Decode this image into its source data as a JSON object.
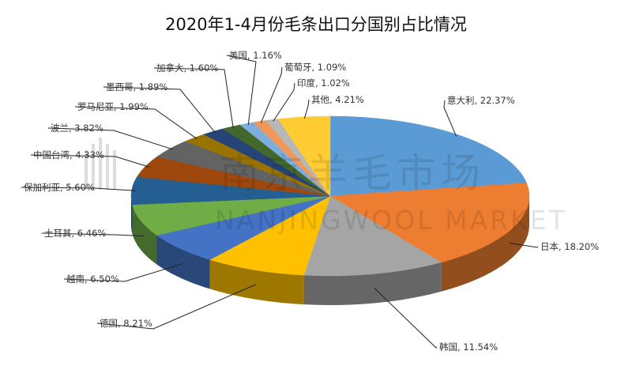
{
  "chart_data": {
    "type": "pie",
    "title": "2020年1-4月份毛条出口分国别占比情况",
    "categories": [
      "意大利",
      "日本",
      "韩国",
      "德国",
      "越南",
      "土耳其",
      "保加利亚",
      "中国台湾",
      "波兰",
      "罗马尼亚",
      "墨西哥",
      "加拿大",
      "美国",
      "葡萄牙",
      "印度",
      "其他"
    ],
    "values": [
      22.37,
      18.2,
      11.54,
      8.21,
      6.5,
      6.46,
      5.6,
      4.33,
      3.82,
      1.99,
      1.89,
      1.6,
      1.16,
      1.09,
      1.02,
      4.21
    ],
    "labels": [
      "意大利, 22.37%",
      "日本, 18.20%",
      "韩国, 11.54%",
      "德国, 8.21%",
      "越南, 6.50%",
      "土耳其, 6.46%",
      "保加利亚, 5.60%",
      "中国台湾, 4.33%",
      "波兰, 3.82%",
      "罗马尼亚, 1.99%",
      "墨西哥, 1.89%",
      "加拿大, 1.60%",
      "美国, 1.16%",
      "葡萄牙, 1.09%",
      "印度, 1.02%",
      "其他, 4.21%"
    ],
    "colors": [
      "#5B9BD5",
      "#ED7D31",
      "#A5A5A5",
      "#FFC000",
      "#4472C4",
      "#70AD47",
      "#255E91",
      "#9E480E",
      "#636363",
      "#997300",
      "#264478",
      "#43682B",
      "#7CAFDD",
      "#F1975A",
      "#B7B7B7",
      "#FFCD33"
    ],
    "unit": "%",
    "legend": "none"
  },
  "watermark": {
    "cn": "南京羊毛市场",
    "en": "NANJINGWOOL MARKET"
  }
}
